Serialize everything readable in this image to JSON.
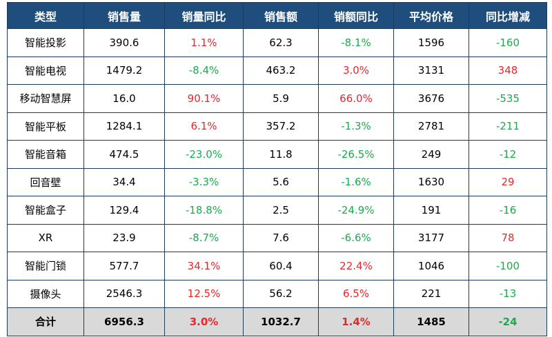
{
  "table": {
    "header": [
      "类型",
      "销售量",
      "销量同比",
      "销售额",
      "销额同比",
      "平均价格",
      "同比增减"
    ],
    "rows": [
      [
        "智能投影",
        "390.6",
        "1.1%",
        "62.3",
        "-8.1%",
        "1596",
        "-160"
      ],
      [
        "智能电视",
        "1479.2",
        "-8.4%",
        "463.2",
        "3.0%",
        "3131",
        "348"
      ],
      [
        "移动智慧屏",
        "16.0",
        "90.1%",
        "5.9",
        "66.0%",
        "3676",
        "-535"
      ],
      [
        "智能平板",
        "1284.1",
        "6.1%",
        "357.2",
        "-1.3%",
        "2781",
        "-211"
      ],
      [
        "智能音箱",
        "474.5",
        "-23.0%",
        "11.8",
        "-26.5%",
        "249",
        "-12"
      ],
      [
        "回音壁",
        "34.4",
        "-3.3%",
        "5.6",
        "-1.6%",
        "1630",
        "29"
      ],
      [
        "智能盒子",
        "129.4",
        "-18.8%",
        "2.5",
        "-24.9%",
        "191",
        "-16"
      ],
      [
        "XR",
        "23.9",
        "-8.7%",
        "7.6",
        "-6.6%",
        "3177",
        "78"
      ],
      [
        "智能门锁",
        "577.7",
        "34.1%",
        "60.4",
        "22.4%",
        "1046",
        "-100"
      ],
      [
        "摄像头",
        "2546.3",
        "12.5%",
        "56.2",
        "6.5%",
        "221",
        "-13"
      ]
    ],
    "total": [
      "合计",
      "6956.3",
      "3.0%",
      "1032.7",
      "1.4%",
      "1485",
      "-24"
    ]
  }
}
